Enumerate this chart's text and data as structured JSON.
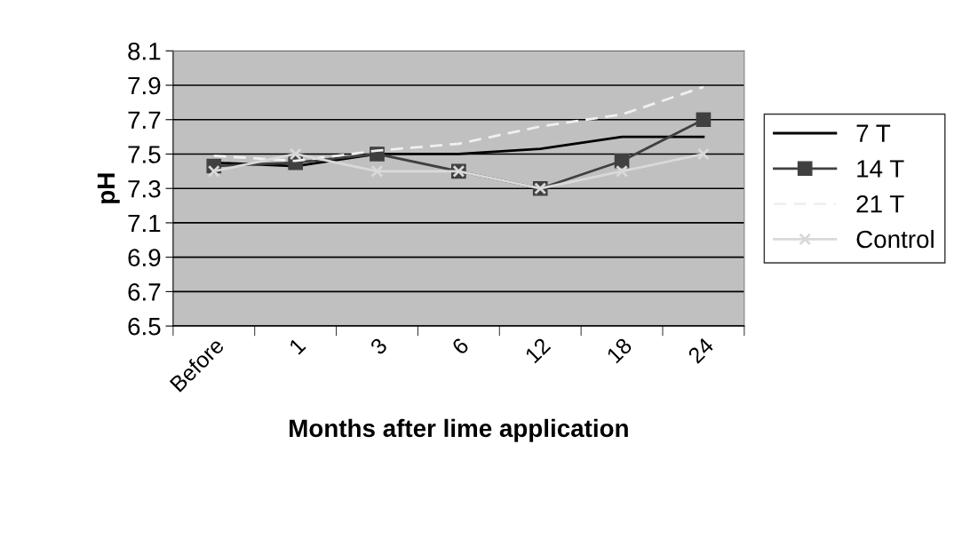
{
  "chart_data": {
    "type": "line",
    "xlabel": "Months after lime application",
    "ylabel": "pH",
    "categories": [
      "Before",
      "1",
      "3",
      "6",
      "12",
      "18",
      "24"
    ],
    "series": [
      {
        "name": "7 T",
        "color": "#000000",
        "values": [
          7.45,
          7.43,
          7.5,
          7.5,
          7.53,
          7.6,
          7.6
        ],
        "marker": "none",
        "line_style": "solid"
      },
      {
        "name": "14 T",
        "color": "#404040",
        "values": [
          7.43,
          7.45,
          7.5,
          7.4,
          7.3,
          7.46,
          7.7
        ],
        "marker": "square",
        "line_style": "solid"
      },
      {
        "name": "21 T",
        "color": "#f0f0f0",
        "values": [
          7.49,
          7.46,
          7.52,
          7.56,
          7.66,
          7.73,
          7.89
        ],
        "marker": "none",
        "line_style": "dashed"
      },
      {
        "name": "Control",
        "color": "#d9d9d9",
        "values": [
          7.4,
          7.5,
          7.4,
          7.4,
          7.3,
          7.4,
          7.5
        ],
        "marker": "cross",
        "line_style": "solid"
      }
    ],
    "ylim": [
      6.5,
      8.1
    ],
    "yticks": [
      6.5,
      6.7,
      6.9,
      7.1,
      7.3,
      7.5,
      7.7,
      7.9,
      8.1
    ],
    "grid": "y",
    "legend": "right"
  }
}
